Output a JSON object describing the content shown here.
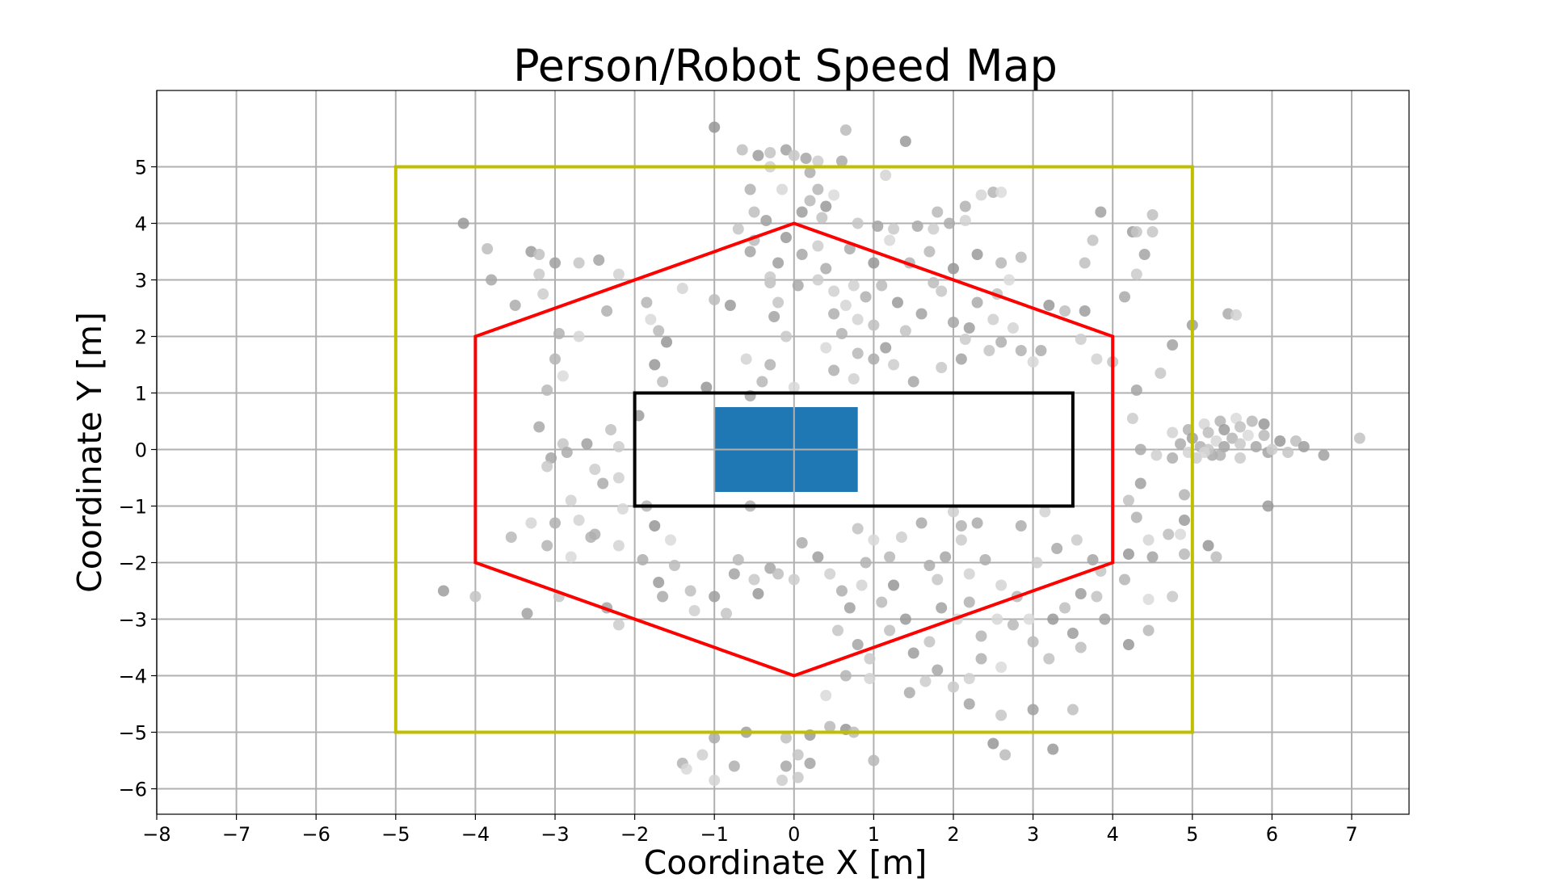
{
  "chart_data": {
    "type": "scatter",
    "title": "Person/Robot Speed Map",
    "xlabel": "Coordinate X [m]",
    "ylabel": "Coordinate Y [m]",
    "xlim": [
      -8,
      7.72
    ],
    "ylim": [
      -6.45,
      6.35
    ],
    "grid": true,
    "x_ticks": [
      -8,
      -7,
      -6,
      -5,
      -4,
      -3,
      -2,
      -1,
      0,
      1,
      2,
      3,
      4,
      5,
      6,
      7
    ],
    "x_tick_labels": [
      "−8",
      "−7",
      "−6",
      "−5",
      "−4",
      "−3",
      "−2",
      "−1",
      "0",
      "1",
      "2",
      "3",
      "4",
      "5",
      "6",
      "7"
    ],
    "y_ticks": [
      5,
      4,
      3,
      2,
      1,
      0,
      -1,
      -2,
      -3,
      -4,
      -5,
      -6
    ],
    "y_tick_labels": [
      "5",
      "4",
      "3",
      "2",
      "1",
      "0",
      "−1",
      "−2",
      "−3",
      "−4",
      "−5",
      "−6"
    ],
    "colors": {
      "grid": "#b0b0b0",
      "yellow_zone": "#bfbf00",
      "red_zone": "#ff0000",
      "robot_box": "#000000",
      "robot_body": "#1f77b4",
      "points": "#a9a9a9"
    },
    "zones": {
      "outer_rectangle": {
        "x": [
          -5,
          5
        ],
        "y": [
          -5,
          5
        ]
      },
      "hexagon": [
        [
          0,
          4
        ],
        [
          4,
          2
        ],
        [
          4,
          -2
        ],
        [
          0,
          -4
        ],
        [
          -4,
          -2
        ],
        [
          -4,
          2
        ]
      ],
      "robot_box": {
        "x": [
          -2,
          3.5
        ],
        "y": [
          -1,
          1
        ]
      },
      "robot_body": {
        "x": [
          -1,
          0.8
        ],
        "y": [
          -0.75,
          0.75
        ]
      }
    },
    "points": [
      [
        -1.0,
        5.7
      ],
      [
        0.65,
        5.65
      ],
      [
        1.4,
        5.45
      ],
      [
        -0.65,
        5.3
      ],
      [
        -0.45,
        5.2
      ],
      [
        -0.3,
        5.25
      ],
      [
        -0.1,
        5.3
      ],
      [
        0.0,
        5.2
      ],
      [
        0.15,
        5.15
      ],
      [
        0.3,
        5.1
      ],
      [
        0.6,
        5.1
      ],
      [
        -0.3,
        5.0
      ],
      [
        0.2,
        4.9
      ],
      [
        1.15,
        4.85
      ],
      [
        -0.55,
        4.6
      ],
      [
        -0.15,
        4.6
      ],
      [
        0.3,
        4.6
      ],
      [
        0.5,
        4.5
      ],
      [
        0.2,
        4.4
      ],
      [
        0.4,
        4.3
      ],
      [
        -0.5,
        4.2
      ],
      [
        0.1,
        4.2
      ],
      [
        0.35,
        4.1
      ],
      [
        -0.35,
        4.05
      ],
      [
        0.8,
        4.0
      ],
      [
        1.05,
        3.95
      ],
      [
        1.25,
        3.9
      ],
      [
        1.55,
        3.95
      ],
      [
        1.75,
        3.9
      ],
      [
        1.95,
        4.0
      ],
      [
        2.15,
        4.05
      ],
      [
        2.15,
        4.3
      ],
      [
        2.35,
        4.5
      ],
      [
        2.5,
        4.55
      ],
      [
        2.6,
        4.55
      ],
      [
        1.8,
        4.2
      ],
      [
        -4.15,
        4.0
      ],
      [
        -3.85,
        3.55
      ],
      [
        -3.3,
        3.5
      ],
      [
        -3.2,
        3.45
      ],
      [
        -3.0,
        3.3
      ],
      [
        -2.7,
        3.3
      ],
      [
        -2.45,
        3.35
      ],
      [
        -3.2,
        3.1
      ],
      [
        -3.8,
        3.0
      ],
      [
        -3.15,
        2.75
      ],
      [
        -3.5,
        2.55
      ],
      [
        -2.2,
        3.1
      ],
      [
        -2.35,
        2.45
      ],
      [
        -1.4,
        2.85
      ],
      [
        -1.85,
        2.6
      ],
      [
        -1.8,
        2.3
      ],
      [
        -1.7,
        2.1
      ],
      [
        -1.6,
        1.9
      ],
      [
        -1.0,
        2.65
      ],
      [
        -0.8,
        2.55
      ],
      [
        -0.3,
        2.95
      ],
      [
        -0.2,
        3.3
      ],
      [
        -0.2,
        2.6
      ],
      [
        -0.25,
        2.35
      ],
      [
        -0.1,
        2.0
      ],
      [
        0.1,
        3.45
      ],
      [
        0.3,
        3.6
      ],
      [
        0.4,
        3.2
      ],
      [
        0.5,
        2.8
      ],
      [
        0.5,
        2.4
      ],
      [
        0.8,
        2.3
      ],
      [
        0.6,
        2.05
      ],
      [
        0.4,
        1.8
      ],
      [
        0.8,
        1.7
      ],
      [
        1.0,
        3.3
      ],
      [
        1.1,
        2.9
      ],
      [
        1.3,
        2.6
      ],
      [
        1.0,
        2.2
      ],
      [
        1.15,
        1.8
      ],
      [
        1.4,
        2.1
      ],
      [
        1.6,
        2.4
      ],
      [
        1.85,
        2.8
      ],
      [
        2.0,
        2.25
      ],
      [
        2.15,
        1.95
      ],
      [
        2.3,
        2.6
      ],
      [
        2.5,
        2.3
      ],
      [
        2.6,
        1.9
      ],
      [
        2.75,
        2.15
      ],
      [
        2.85,
        1.75
      ],
      [
        3.0,
        1.55
      ],
      [
        2.6,
        3.3
      ],
      [
        2.7,
        3.0
      ],
      [
        2.85,
        3.4
      ],
      [
        3.2,
        2.55
      ],
      [
        3.4,
        2.45
      ],
      [
        3.65,
        2.45
      ],
      [
        3.75,
        3.7
      ],
      [
        3.85,
        4.2
      ],
      [
        4.5,
        3.85
      ],
      [
        4.4,
        3.45
      ],
      [
        4.3,
        3.1
      ],
      [
        4.15,
        2.7
      ],
      [
        3.6,
        1.95
      ],
      [
        3.1,
        1.75
      ],
      [
        3.8,
        1.6
      ],
      [
        -2.95,
        2.05
      ],
      [
        -2.7,
        2.0
      ],
      [
        -3.0,
        1.6
      ],
      [
        -2.9,
        1.3
      ],
      [
        -3.1,
        1.05
      ],
      [
        -1.75,
        1.5
      ],
      [
        -1.65,
        1.2
      ],
      [
        -1.95,
        0.6
      ],
      [
        -2.3,
        0.35
      ],
      [
        -2.6,
        0.1
      ],
      [
        -2.9,
        0.1
      ],
      [
        -3.05,
        -0.15
      ],
      [
        -3.1,
        -0.3
      ],
      [
        -3.2,
        0.4
      ],
      [
        -2.5,
        -0.35
      ],
      [
        -2.4,
        -0.6
      ],
      [
        -2.8,
        -0.9
      ],
      [
        -3.0,
        -1.3
      ],
      [
        -3.3,
        -1.3
      ],
      [
        -3.1,
        -1.7
      ],
      [
        -2.8,
        -1.9
      ],
      [
        -3.55,
        -1.55
      ],
      [
        -1.75,
        -1.35
      ],
      [
        -1.5,
        -2.05
      ],
      [
        -1.7,
        -2.35
      ],
      [
        -1.3,
        -2.5
      ],
      [
        -1.0,
        -2.6
      ],
      [
        -0.85,
        -2.9
      ],
      [
        -0.75,
        -2.2
      ],
      [
        -0.5,
        -2.3
      ],
      [
        -0.3,
        -2.1
      ],
      [
        0.0,
        -2.3
      ],
      [
        0.1,
        -1.65
      ],
      [
        0.45,
        -2.2
      ],
      [
        0.6,
        -2.5
      ],
      [
        0.85,
        -2.4
      ],
      [
        0.9,
        -2.0
      ],
      [
        1.0,
        -1.6
      ],
      [
        1.2,
        -1.9
      ],
      [
        1.25,
        -2.4
      ],
      [
        1.1,
        -2.7
      ],
      [
        1.4,
        -3.0
      ],
      [
        1.2,
        -3.2
      ],
      [
        1.5,
        -3.6
      ],
      [
        1.7,
        -3.4
      ],
      [
        1.85,
        -2.8
      ],
      [
        1.8,
        -2.3
      ],
      [
        1.9,
        -1.9
      ],
      [
        2.1,
        -1.6
      ],
      [
        2.3,
        -1.3
      ],
      [
        2.0,
        -1.1
      ],
      [
        2.4,
        -1.95
      ],
      [
        2.6,
        -2.4
      ],
      [
        2.2,
        -2.7
      ],
      [
        2.55,
        -3.0
      ],
      [
        2.8,
        -2.6
      ],
      [
        2.95,
        -3.0
      ],
      [
        3.0,
        -3.4
      ],
      [
        3.25,
        -3.0
      ],
      [
        3.4,
        -2.8
      ],
      [
        3.6,
        -2.55
      ],
      [
        3.8,
        -2.6
      ],
      [
        3.9,
        -3.0
      ],
      [
        3.85,
        -2.15
      ],
      [
        3.75,
        -1.95
      ],
      [
        3.55,
        -1.6
      ],
      [
        3.3,
        -1.75
      ],
      [
        3.05,
        -2.0
      ],
      [
        2.85,
        -1.35
      ],
      [
        3.15,
        -1.1
      ],
      [
        4.3,
        -1.2
      ],
      [
        4.45,
        -1.6
      ],
      [
        4.15,
        -2.3
      ],
      [
        4.45,
        -2.65
      ],
      [
        4.45,
        -3.2
      ],
      [
        4.2,
        -3.45
      ],
      [
        3.6,
        -3.5
      ],
      [
        3.5,
        -3.25
      ],
      [
        3.2,
        -3.7
      ],
      [
        3.0,
        -4.6
      ],
      [
        2.6,
        -4.7
      ],
      [
        2.2,
        -4.5
      ],
      [
        2.0,
        -4.2
      ],
      [
        1.8,
        -3.9
      ],
      [
        1.65,
        -4.1
      ],
      [
        1.45,
        -4.3
      ],
      [
        2.2,
        -4.05
      ],
      [
        2.35,
        -3.7
      ],
      [
        0.95,
        -4.05
      ],
      [
        0.65,
        -4.0
      ],
      [
        0.4,
        -4.35
      ],
      [
        0.45,
        -4.9
      ],
      [
        0.65,
        -4.95
      ],
      [
        0.75,
        -5.0
      ],
      [
        0.2,
        -5.05
      ],
      [
        -0.1,
        -5.1
      ],
      [
        -0.6,
        -5.0
      ],
      [
        0.05,
        -5.4
      ],
      [
        0.2,
        -5.55
      ],
      [
        0.05,
        -5.8
      ],
      [
        -0.1,
        -5.6
      ],
      [
        -0.15,
        -5.85
      ],
      [
        -1.0,
        -5.1
      ],
      [
        -1.15,
        -5.4
      ],
      [
        -0.75,
        -5.6
      ],
      [
        -1.0,
        -5.85
      ],
      [
        -1.4,
        -5.55
      ],
      [
        -1.35,
        -5.65
      ],
      [
        1.0,
        -5.5
      ],
      [
        2.5,
        -5.2
      ],
      [
        2.65,
        -5.4
      ],
      [
        3.25,
        -5.3
      ],
      [
        3.5,
        -4.6
      ],
      [
        -4.4,
        -2.5
      ],
      [
        -4.0,
        -2.6
      ],
      [
        -3.35,
        -2.9
      ],
      [
        -2.95,
        -2.6
      ],
      [
        -2.35,
        -2.8
      ],
      [
        -2.2,
        -3.1
      ],
      [
        -1.65,
        -2.6
      ],
      [
        -1.25,
        -2.85
      ],
      [
        -1.9,
        -1.95
      ],
      [
        -2.2,
        -1.7
      ],
      [
        -2.55,
        -1.55
      ],
      [
        -2.15,
        -1.05
      ],
      [
        -1.85,
        -1.0
      ],
      [
        -1.55,
        -1.6
      ],
      [
        -0.7,
        -1.95
      ],
      [
        -0.45,
        -2.55
      ],
      [
        -0.2,
        -2.2
      ],
      [
        0.3,
        -1.9
      ],
      [
        0.8,
        -1.4
      ],
      [
        0.7,
        -2.8
      ],
      [
        0.55,
        -3.2
      ],
      [
        0.8,
        -3.45
      ],
      [
        0.95,
        -3.7
      ],
      [
        1.6,
        -1.3
      ],
      [
        1.35,
        -1.55
      ],
      [
        1.7,
        -2.05
      ],
      [
        2.2,
        -2.2
      ],
      [
        2.1,
        -1.35
      ],
      [
        2.05,
        -3.0
      ],
      [
        2.35,
        -3.3
      ],
      [
        2.6,
        -3.85
      ],
      [
        2.75,
        -3.1
      ],
      [
        4.2,
        -1.85
      ],
      [
        4.7,
        -1.5
      ],
      [
        4.9,
        -1.25
      ],
      [
        4.2,
        -0.9
      ],
      [
        4.35,
        -0.6
      ],
      [
        -0.7,
        3.9
      ],
      [
        -0.55,
        3.5
      ],
      [
        -0.3,
        3.05
      ],
      [
        0.05,
        2.9
      ],
      [
        0.3,
        3.0
      ],
      [
        0.7,
        3.55
      ],
      [
        0.75,
        2.9
      ],
      [
        0.9,
        2.7
      ],
      [
        0.65,
        2.55
      ],
      [
        1.45,
        3.3
      ],
      [
        1.2,
        3.7
      ],
      [
        1.7,
        3.5
      ],
      [
        2.0,
        3.2
      ],
      [
        1.75,
        2.95
      ],
      [
        2.3,
        3.45
      ],
      [
        2.55,
        2.75
      ],
      [
        2.2,
        2.15
      ],
      [
        2.45,
        1.75
      ],
      [
        2.1,
        1.6
      ],
      [
        1.85,
        1.45
      ],
      [
        1.5,
        1.2
      ],
      [
        1.25,
        1.5
      ],
      [
        1.0,
        1.6
      ],
      [
        0.75,
        1.25
      ],
      [
        0.5,
        1.4
      ],
      [
        -0.6,
        1.6
      ],
      [
        -0.3,
        1.5
      ],
      [
        0.0,
        1.1
      ],
      [
        -0.4,
        1.2
      ],
      [
        -1.1,
        1.1
      ],
      [
        -0.5,
        3.7
      ],
      [
        -0.1,
        3.75
      ],
      [
        3.65,
        3.3
      ],
      [
        4.25,
        3.85
      ],
      [
        4.0,
        1.55
      ],
      [
        4.75,
        1.85
      ],
      [
        4.6,
        1.35
      ],
      [
        4.3,
        1.05
      ],
      [
        4.25,
        0.55
      ],
      [
        4.35,
        0.0
      ],
      [
        4.55,
        -0.1
      ],
      [
        4.75,
        -0.15
      ],
      [
        4.95,
        -0.05
      ],
      [
        5.1,
        0.05
      ],
      [
        5.3,
        0.15
      ],
      [
        5.5,
        0.2
      ],
      [
        5.7,
        0.25
      ],
      [
        5.9,
        0.25
      ],
      [
        6.1,
        0.15
      ],
      [
        6.3,
        0.15
      ],
      [
        6.4,
        0.05
      ],
      [
        7.1,
        0.2
      ],
      [
        6.65,
        -0.1
      ],
      [
        6.2,
        -0.05
      ],
      [
        5.95,
        -0.05
      ],
      [
        5.6,
        -0.15
      ],
      [
        5.25,
        -0.1
      ],
      [
        5.05,
        -0.15
      ],
      [
        4.85,
        0.1
      ],
      [
        4.75,
        0.3
      ],
      [
        4.95,
        0.35
      ],
      [
        5.15,
        0.45
      ],
      [
        5.35,
        0.5
      ],
      [
        5.55,
        0.55
      ],
      [
        5.75,
        0.5
      ],
      [
        5.9,
        0.45
      ],
      [
        5.2,
        0.3
      ],
      [
        5.4,
        0.35
      ],
      [
        5.6,
        0.4
      ],
      [
        5.0,
        0.2
      ],
      [
        5.2,
        0.0
      ],
      [
        5.4,
        0.05
      ],
      [
        5.6,
        0.1
      ],
      [
        5.8,
        0.05
      ],
      [
        6.0,
        0.0
      ],
      [
        5.45,
        2.4
      ],
      [
        5.55,
        2.38
      ],
      [
        5.35,
        -0.1
      ],
      [
        5.15,
        -0.05
      ],
      [
        4.9,
        -0.8
      ],
      [
        4.85,
        -1.5
      ],
      [
        4.9,
        -1.85
      ],
      [
        5.2,
        -1.7
      ],
      [
        5.3,
        -1.9
      ],
      [
        5.95,
        -1.0
      ],
      [
        4.5,
        4.15
      ],
      [
        5.0,
        2.2
      ],
      [
        4.3,
        3.85
      ],
      [
        4.5,
        -1.9
      ],
      [
        4.75,
        -2.6
      ],
      [
        -0.55,
        0.95
      ],
      [
        -2.2,
        0.05
      ],
      [
        -2.85,
        -0.05
      ],
      [
        -2.2,
        -0.5
      ],
      [
        -2.5,
        -1.5
      ],
      [
        -2.7,
        -1.25
      ],
      [
        -0.55,
        -1.0
      ]
    ]
  }
}
